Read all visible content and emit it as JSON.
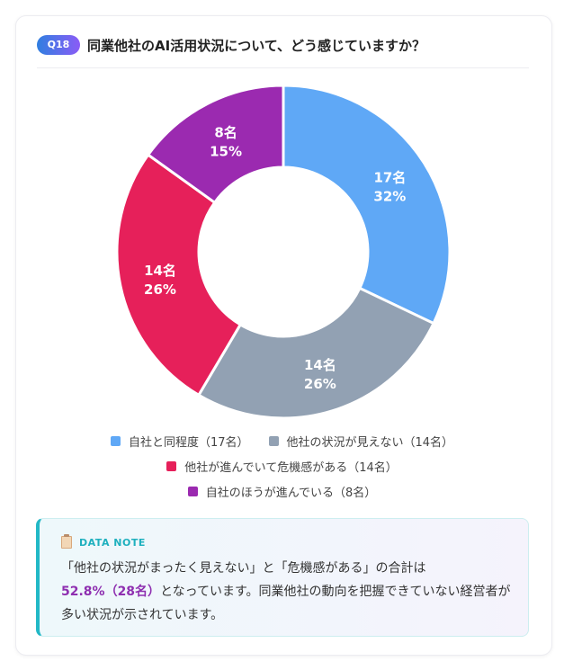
{
  "header": {
    "badge": "Q18",
    "title": "同業他社のAI活用状況について、どう感じていますか？"
  },
  "chart_data": {
    "type": "pie",
    "donut": true,
    "title": "同業他社のAI活用状況について、どう感じていますか？",
    "start": "top",
    "direction": "clockwise",
    "series": [
      {
        "label": "自社と同程度",
        "count": 17,
        "percent": 32,
        "count_label": "17名",
        "percent_label": "32%",
        "legend": "自社と同程度（17名）",
        "color": "#5fa8f6"
      },
      {
        "label": "他社の状況が見えない",
        "count": 14,
        "percent": 26,
        "count_label": "14名",
        "percent_label": "26%",
        "legend": "他社の状況が見えない（14名）",
        "color": "#92a1b3"
      },
      {
        "label": "他社が進んでいて危機感がある",
        "count": 14,
        "percent": 26,
        "count_label": "14名",
        "percent_label": "26%",
        "legend": "他社が進んでいて危機感がある（14名）",
        "color": "#e6205a"
      },
      {
        "label": "自社のほうが進んでいる",
        "count": 8,
        "percent": 15,
        "count_label": "8名",
        "percent_label": "15%",
        "legend": "自社のほうが進んでいる（8名）",
        "color": "#9b2ab0"
      }
    ]
  },
  "note": {
    "heading": "DATA NOTE",
    "text_before": "「他社の状況がまったく見えない」と「危機感がある」の合計は",
    "highlight": "52.8%（28名）",
    "text_after": "となっています。同業他社の動向を把握できていない経営者が多い状況が示されています。"
  }
}
